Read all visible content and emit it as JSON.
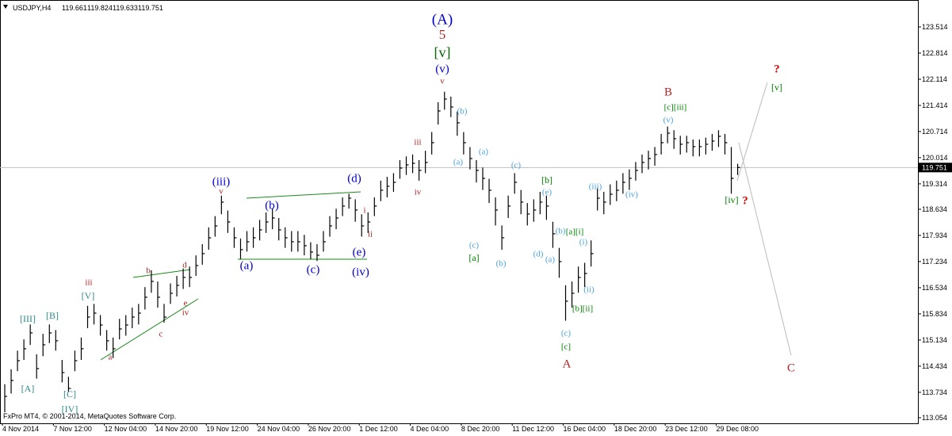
{
  "chart_data": {
    "type": "ohlc",
    "symbol": "USDJPY,H4",
    "quote": [
      119.661,
      119.824,
      119.633,
      119.751
    ],
    "copyright": "FxPro MT4, © 2001-2014, MetaQuotes Software Corp.",
    "color": "#000000",
    "current_price": 119.751,
    "ylim": [
      112.904,
      124.235
    ],
    "yticks": [
      123.514,
      122.814,
      122.114,
      121.414,
      120.714,
      120.014,
      119.314,
      118.634,
      117.934,
      117.234,
      116.534,
      115.834,
      115.134,
      114.434,
      113.734,
      113.054
    ],
    "categories": [
      "4 Nov 2014",
      null,
      null,
      null,
      null,
      null,
      null,
      null,
      "7 Nov 12:00",
      null,
      null,
      null,
      null,
      null,
      null,
      null,
      "12 Nov 04:00",
      null,
      null,
      null,
      null,
      null,
      null,
      null,
      "14 Nov 20:00",
      null,
      null,
      null,
      null,
      null,
      null,
      null,
      "19 Nov 12:00",
      null,
      null,
      null,
      null,
      null,
      null,
      null,
      "24 Nov 04:00",
      null,
      null,
      null,
      null,
      null,
      null,
      null,
      "26 Nov 20:00",
      null,
      null,
      null,
      null,
      null,
      null,
      null,
      "1 Dec 12:00",
      null,
      null,
      null,
      null,
      null,
      null,
      null,
      "4 Dec 04:00",
      null,
      null,
      null,
      null,
      null,
      null,
      null,
      "8 Dec 20:00",
      null,
      null,
      null,
      null,
      null,
      null,
      null,
      "11 Dec 12:00",
      null,
      null,
      null,
      null,
      null,
      null,
      null,
      "16 Dec 04:00",
      null,
      null,
      null,
      null,
      null,
      null,
      null,
      "18 Dec 20:00",
      null,
      null,
      null,
      null,
      null,
      null,
      null,
      "23 Dec 12:00",
      null,
      null,
      null,
      null,
      null,
      null,
      null,
      "29 Dec 08:00",
      null,
      null,
      null
    ],
    "high": [
      113.95,
      114.35,
      114.85,
      115.15,
      115.55,
      114.75,
      115.3,
      115.55,
      115.4,
      114.6,
      114.15,
      114.85,
      115.2,
      116.05,
      116.1,
      115.8,
      115.4,
      115.2,
      115.7,
      115.8,
      116.0,
      116.1,
      116.55,
      117.0,
      116.7,
      116.1,
      116.65,
      116.85,
      117.05,
      117.1,
      117.4,
      117.7,
      118.15,
      118.45,
      119.0,
      118.6,
      118.15,
      117.85,
      118.05,
      118.15,
      118.35,
      118.55,
      118.65,
      118.4,
      118.15,
      118.05,
      118.05,
      117.95,
      117.75,
      117.7,
      118.05,
      118.45,
      118.65,
      118.95,
      119.05,
      118.9,
      118.5,
      118.55,
      118.95,
      119.4,
      119.5,
      119.6,
      119.95,
      120.05,
      120.1,
      119.95,
      120.2,
      120.7,
      121.5,
      121.78,
      121.65,
      121.25,
      120.7,
      120.3,
      119.95,
      119.75,
      119.45,
      118.95,
      118.2,
      119.0,
      119.6,
      119.15,
      118.8,
      118.9,
      119.1,
      119.0,
      118.3,
      117.6,
      116.6,
      116.7,
      117.1,
      117.2,
      117.8,
      119.2,
      119.1,
      119.3,
      119.4,
      119.6,
      119.7,
      119.9,
      120.1,
      120.2,
      120.3,
      120.65,
      120.85,
      120.75,
      120.6,
      120.6,
      120.5,
      120.5,
      120.55,
      120.65,
      120.75,
      120.65,
      120.3,
      119.85
    ],
    "low": [
      113.2,
      113.7,
      114.3,
      114.6,
      115.0,
      114.1,
      114.7,
      115.05,
      114.85,
      114.0,
      113.75,
      114.3,
      114.6,
      115.45,
      115.55,
      115.25,
      114.85,
      114.65,
      115.15,
      115.25,
      115.45,
      115.55,
      115.95,
      116.4,
      116.0,
      115.6,
      116.1,
      116.3,
      116.5,
      116.55,
      116.85,
      117.15,
      117.55,
      117.9,
      118.5,
      118.0,
      117.6,
      117.3,
      117.5,
      117.6,
      117.8,
      118.0,
      118.1,
      117.8,
      117.6,
      117.5,
      117.5,
      117.4,
      117.3,
      117.25,
      117.5,
      117.9,
      118.1,
      118.45,
      118.65,
      118.3,
      117.9,
      118.0,
      118.45,
      118.85,
      118.95,
      119.1,
      119.45,
      119.55,
      119.6,
      119.4,
      119.6,
      120.1,
      120.9,
      121.3,
      121.1,
      120.6,
      120.1,
      119.7,
      119.35,
      119.15,
      118.8,
      118.2,
      117.55,
      118.4,
      119.05,
      118.5,
      118.2,
      118.3,
      118.5,
      118.35,
      117.6,
      116.8,
      115.65,
      116.0,
      116.4,
      116.55,
      117.1,
      118.6,
      118.5,
      118.75,
      118.85,
      119.05,
      119.15,
      119.4,
      119.6,
      119.7,
      119.8,
      120.1,
      120.4,
      120.25,
      120.1,
      120.15,
      120.05,
      120.05,
      120.1,
      120.2,
      120.3,
      120.1,
      119.05,
      119.55
    ],
    "close": [
      113.626,
      114.051,
      114.581,
      114.9,
      115.324,
      114.369,
      115.006,
      115.324,
      115.112,
      114.263,
      113.839,
      114.581,
      114.9,
      115.748,
      115.854,
      115.536,
      115.112,
      114.9,
      115.43,
      115.536,
      115.748,
      115.854,
      116.279,
      116.703,
      116.279,
      115.748,
      116.385,
      116.597,
      116.809,
      116.809,
      117.127,
      117.446,
      117.87,
      118.188,
      118.825,
      118.294,
      117.87,
      117.552,
      117.764,
      117.87,
      118.082,
      118.294,
      118.4,
      118.082,
      117.87,
      117.764,
      117.764,
      117.658,
      117.488,
      117.403,
      117.764,
      118.188,
      118.4,
      118.719,
      118.931,
      118.613,
      118.188,
      118.294,
      118.719,
      119.143,
      119.249,
      119.355,
      119.737,
      119.822,
      119.864,
      119.674,
      119.886,
      120.416,
      121.265,
      121.583,
      121.371,
      120.947,
      120.416,
      119.992,
      119.674,
      119.461,
      119.143,
      118.613,
      117.87,
      118.719,
      119.355,
      118.825,
      118.507,
      118.613,
      118.825,
      118.719,
      117.976,
      117.233,
      116.173,
      116.385,
      116.809,
      116.915,
      117.446,
      118.931,
      118.825,
      119.037,
      119.143,
      119.355,
      119.461,
      119.674,
      119.886,
      119.992,
      120.098,
      120.416,
      120.671,
      120.522,
      120.374,
      120.416,
      120.31,
      120.31,
      120.374,
      120.459,
      120.586,
      120.416,
      119.461,
      119.751
    ],
    "annotations": [
      {
        "text": "(A)",
        "color": "#0000cd"
      },
      {
        "text": "5",
        "color": "#b22222"
      },
      {
        "text": "[v]",
        "color": "#006400"
      },
      {
        "text": "(v)",
        "color": "#0000cd"
      },
      {
        "text": "v",
        "color": "#b22222"
      },
      {
        "text": "B",
        "color": "#b22222"
      },
      {
        "text": "[c][iii]",
        "color": "#008000"
      },
      {
        "text": "(v)",
        "color": "#4aa3df"
      },
      {
        "text": "?",
        "color": "#e00000"
      },
      {
        "text": "[v]",
        "color": "#008000"
      },
      {
        "text": "[iv]",
        "color": "#008000"
      },
      {
        "text": "?",
        "color": "#e00000"
      },
      {
        "text": "C",
        "color": "#b22222"
      },
      {
        "text": "(iii)",
        "color": "#0000cd"
      },
      {
        "text": "v",
        "color": "#b22222"
      },
      {
        "text": "(b)",
        "color": "#0000cd"
      },
      {
        "text": "(d)",
        "color": "#0000cd"
      },
      {
        "text": "i",
        "color": "#b22222"
      },
      {
        "text": "ii",
        "color": "#b22222"
      },
      {
        "text": "(a)",
        "color": "#0000cd"
      },
      {
        "text": "(c)",
        "color": "#0000cd"
      },
      {
        "text": "(e)",
        "color": "#0000cd"
      },
      {
        "text": "(iv)",
        "color": "#0000cd"
      },
      {
        "text": "iii",
        "color": "#b22222"
      },
      {
        "text": "iv",
        "color": "#b22222"
      },
      {
        "text": "(b)",
        "color": "#4aa3df"
      },
      {
        "text": "(a)",
        "color": "#4aa3df"
      },
      {
        "text": "(a)",
        "color": "#4aa3df"
      },
      {
        "text": "(c)",
        "color": "#4aa3df"
      },
      {
        "text": "[b]",
        "color": "#008000"
      },
      {
        "text": "(e)",
        "color": "#4aa3df"
      },
      {
        "text": "(c)",
        "color": "#4aa3df"
      },
      {
        "text": "[a]",
        "color": "#008000"
      },
      {
        "text": "(b)",
        "color": "#4aa3df"
      },
      {
        "text": "(d)",
        "color": "#4aa3df"
      },
      {
        "text": "(a)",
        "color": "#4aa3df"
      },
      {
        "text": "(b)",
        "color": "#4aa3df"
      },
      {
        "text": "[a][i]",
        "color": "#008000"
      },
      {
        "text": "(i)",
        "color": "#4aa3df"
      },
      {
        "text": "(ii)",
        "color": "#4aa3df"
      },
      {
        "text": "[b][ii]",
        "color": "#008000"
      },
      {
        "text": "(c)",
        "color": "#4aa3df"
      },
      {
        "text": "[c]",
        "color": "#008000"
      },
      {
        "text": "A",
        "color": "#b22222"
      },
      {
        "text": "(iii)",
        "color": "#4aa3df"
      },
      {
        "text": "(iv)",
        "color": "#4aa3df"
      },
      {
        "text": "[III]",
        "color": "#2e8b8b"
      },
      {
        "text": "[B]",
        "color": "#2e8b8b"
      },
      {
        "text": "[A]",
        "color": "#2e8b8b"
      },
      {
        "text": "[C]",
        "color": "#2e8b8b"
      },
      {
        "text": "[IV]",
        "color": "#2e8b8b"
      },
      {
        "text": "[V]",
        "color": "#2e8b8b"
      },
      {
        "text": "iii",
        "color": "#b22222"
      },
      {
        "text": "b",
        "color": "#b22222"
      },
      {
        "text": "a",
        "color": "#b22222"
      },
      {
        "text": "c",
        "color": "#b22222"
      },
      {
        "text": "d",
        "color": "#b22222"
      },
      {
        "text": "e",
        "color": "#b22222"
      },
      {
        "text": "iv",
        "color": "#b22222"
      }
    ]
  }
}
